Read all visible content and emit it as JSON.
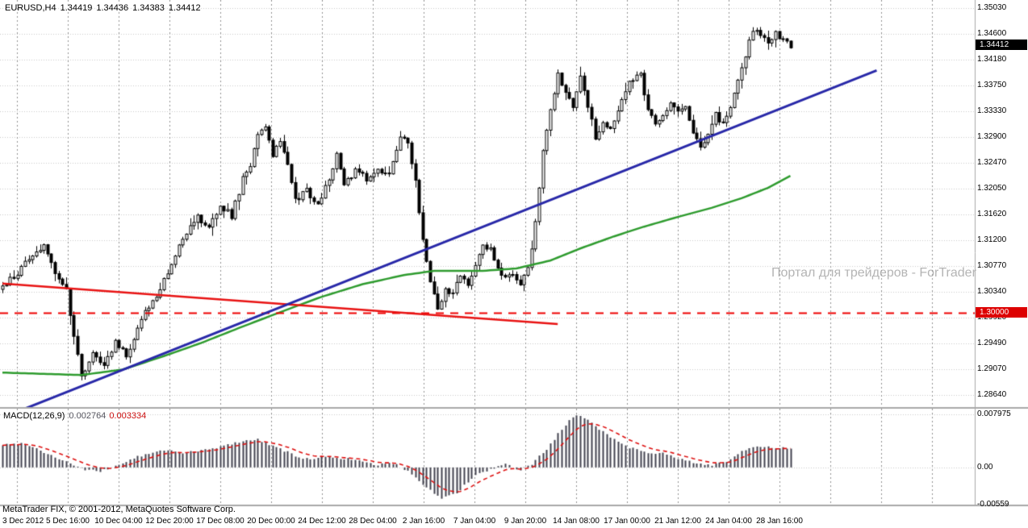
{
  "header": {
    "symbol": "EURUSD,H4",
    "open": "1.34419",
    "high": "1.34436",
    "low": "1.34383",
    "close": "1.34412"
  },
  "watermark": "Портал для трейдеров - ForTrader",
  "footer": "MetaTrader FIX, © 2001-2012, MetaQuotes Software Corp.",
  "price_tags": {
    "current": "1.34412",
    "level": "1.30000"
  },
  "macd_panel": {
    "label": "MACD(12,26,9)",
    "value_main": "0.002764",
    "value_signal": "0.003334",
    "axis_labels": [
      "0.007975",
      "0.00",
      "-0.00559"
    ]
  },
  "colors": {
    "background": "#ffffff",
    "candle_up": "#ffffff",
    "candle_down": "#000000",
    "candle_border": "#000000",
    "ma_green": "#2e9b2e",
    "trendline_blue": "#2828a8",
    "trendline_red": "#e81212",
    "level_red": "#ee0000",
    "macd_histogram": "#43434f",
    "macd_signal": "#dd1111",
    "grid": "#c9c9c9",
    "vgrid": "#8f8f8f",
    "separator": "#a8a8a8",
    "axis_text": "#000000",
    "tag_current_bg": "#000000",
    "tag_level_bg": "#dd0000",
    "watermark": "#b4b4b4"
  },
  "chart_data": {
    "type": "candlestick",
    "title": "EURUSD H4 with MACD(12,26,9)",
    "symbol": "EURUSD",
    "timeframe": "H4",
    "last_bar_ohlc": [
      1.34419,
      1.34436,
      1.34383,
      1.34412
    ],
    "price_axis": {
      "max": 1.3503,
      "min": 1.2864,
      "labels": [
        "1.35030",
        "1.34600",
        "1.34180",
        "1.33750",
        "1.33330",
        "1.32900",
        "1.32470",
        "1.32050",
        "1.31620",
        "1.31200",
        "1.30770",
        "1.30340",
        "1.29920",
        "1.29490",
        "1.29070",
        "1.28640"
      ],
      "current_price": 1.34412,
      "level_price": 1.3
    },
    "time_axis": {
      "labels": [
        "3 Dec 2012",
        "5 Dec 16:00",
        "10 Dec 04:00",
        "12 Dec 20:00",
        "17 Dec 08:00",
        "20 Dec 00:00",
        "24 Dec 12:00",
        "28 Dec 04:00",
        "2 Jan 16:00",
        "7 Jan 04:00",
        "9 Jan 20:00",
        "14 Jan 08:00",
        "17 Jan 00:00",
        "21 Jan 12:00",
        "24 Jan 04:00",
        "28 Jan 16:00"
      ]
    },
    "n_bars": 211,
    "close_waypoints": [
      [
        0,
        1.304
      ],
      [
        3,
        1.306
      ],
      [
        8,
        1.3095
      ],
      [
        11,
        1.3115
      ],
      [
        14,
        1.306
      ],
      [
        17,
        1.3035
      ],
      [
        19,
        1.296
      ],
      [
        21,
        1.2895
      ],
      [
        24,
        1.293
      ],
      [
        27,
        1.2915
      ],
      [
        30,
        1.295
      ],
      [
        33,
        1.293
      ],
      [
        36,
        1.2975
      ],
      [
        39,
        1.301
      ],
      [
        42,
        1.304
      ],
      [
        45,
        1.308
      ],
      [
        48,
        1.312
      ],
      [
        52,
        1.316
      ],
      [
        55,
        1.314
      ],
      [
        58,
        1.3175
      ],
      [
        61,
        1.316
      ],
      [
        64,
        1.322
      ],
      [
        66,
        1.3245
      ],
      [
        68,
        1.329
      ],
      [
        70,
        1.3305
      ],
      [
        72,
        1.326
      ],
      [
        74,
        1.328
      ],
      [
        76,
        1.324
      ],
      [
        78,
        1.3185
      ],
      [
        81,
        1.32
      ],
      [
        84,
        1.318
      ],
      [
        87,
        1.322
      ],
      [
        89,
        1.326
      ],
      [
        91,
        1.321
      ],
      [
        94,
        1.3235
      ],
      [
        97,
        1.322
      ],
      [
        100,
        1.324
      ],
      [
        103,
        1.3225
      ],
      [
        106,
        1.3295
      ],
      [
        108,
        1.328
      ],
      [
        110,
        1.322
      ],
      [
        112,
        1.312
      ],
      [
        114,
        1.305
      ],
      [
        116,
        1.3005
      ],
      [
        118,
        1.304
      ],
      [
        120,
        1.303
      ],
      [
        122,
        1.306
      ],
      [
        124,
        1.3045
      ],
      [
        126,
        1.308
      ],
      [
        128,
        1.311
      ],
      [
        130,
        1.3105
      ],
      [
        132,
        1.307
      ],
      [
        134,
        1.306
      ],
      [
        136,
        1.3065
      ],
      [
        138,
        1.305
      ],
      [
        140,
        1.307
      ],
      [
        142,
        1.315
      ],
      [
        144,
        1.327
      ],
      [
        146,
        1.333
      ],
      [
        148,
        1.3395
      ],
      [
        150,
        1.336
      ],
      [
        152,
        1.334
      ],
      [
        154,
        1.339
      ],
      [
        156,
        1.334
      ],
      [
        158,
        1.329
      ],
      [
        160,
        1.331
      ],
      [
        162,
        1.33
      ],
      [
        164,
        1.333
      ],
      [
        166,
        1.337
      ],
      [
        168,
        1.3385
      ],
      [
        170,
        1.339
      ],
      [
        172,
        1.334
      ],
      [
        174,
        1.331
      ],
      [
        176,
        1.333
      ],
      [
        178,
        1.3345
      ],
      [
        180,
        1.333
      ],
      [
        182,
        1.334
      ],
      [
        184,
        1.33
      ],
      [
        186,
        1.327
      ],
      [
        188,
        1.33
      ],
      [
        190,
        1.333
      ],
      [
        192,
        1.331
      ],
      [
        194,
        1.334
      ],
      [
        196,
        1.338
      ],
      [
        198,
        1.342
      ],
      [
        200,
        1.347
      ],
      [
        202,
        1.3455
      ],
      [
        204,
        1.3445
      ],
      [
        206,
        1.346
      ],
      [
        208,
        1.345
      ],
      [
        210,
        1.3441
      ]
    ],
    "ma_green_waypoints": [
      [
        0,
        1.2901
      ],
      [
        21,
        1.2897
      ],
      [
        32,
        1.2906
      ],
      [
        42,
        1.2926
      ],
      [
        53,
        1.295
      ],
      [
        64,
        1.2977
      ],
      [
        75,
        1.3003
      ],
      [
        85,
        1.3026
      ],
      [
        96,
        1.3047
      ],
      [
        107,
        1.3062
      ],
      [
        115,
        1.3069
      ],
      [
        128,
        1.3069
      ],
      [
        137,
        1.3073
      ],
      [
        146,
        1.3086
      ],
      [
        154,
        1.3106
      ],
      [
        163,
        1.3126
      ],
      [
        171,
        1.3142
      ],
      [
        180,
        1.3158
      ],
      [
        189,
        1.3173
      ],
      [
        197,
        1.3189
      ],
      [
        204,
        1.3206
      ],
      [
        210,
        1.3226
      ]
    ],
    "trendline_blue": {
      "from": [
        5,
        1.2839
      ],
      "to": [
        233,
        1.34
      ]
    },
    "trendline_red": {
      "from": [
        0,
        1.3048
      ],
      "to": [
        148,
        1.2981
      ]
    },
    "hline_red_dashed": 1.3,
    "macd": {
      "max": 0.007975,
      "min": -0.00559,
      "signal_period": 9,
      "waypoints": [
        [
          0,
          0.0034
        ],
        [
          6,
          0.0036
        ],
        [
          13,
          0.0018
        ],
        [
          18,
          0.0006
        ],
        [
          22,
          -0.0004
        ],
        [
          26,
          -0.0006
        ],
        [
          30,
          0.0002
        ],
        [
          36,
          0.0016
        ],
        [
          43,
          0.0026
        ],
        [
          49,
          0.0022
        ],
        [
          56,
          0.0028
        ],
        [
          64,
          0.004
        ],
        [
          68,
          0.0042
        ],
        [
          74,
          0.0028
        ],
        [
          80,
          0.0012
        ],
        [
          86,
          0.0016
        ],
        [
          92,
          0.0013
        ],
        [
          99,
          0.0004
        ],
        [
          104,
          0.0006
        ],
        [
          108,
          -0.0005
        ],
        [
          113,
          -0.003
        ],
        [
          117,
          -0.0047
        ],
        [
          121,
          -0.0038
        ],
        [
          126,
          -0.0012
        ],
        [
          130,
          -0.0003
        ],
        [
          134,
          0.0004
        ],
        [
          138,
          -0.0004
        ],
        [
          141,
          0.0005
        ],
        [
          145,
          0.0028
        ],
        [
          148,
          0.005
        ],
        [
          151,
          0.007
        ],
        [
          153,
          0.0077
        ],
        [
          156,
          0.0073
        ],
        [
          159,
          0.0058
        ],
        [
          163,
          0.0042
        ],
        [
          167,
          0.003
        ],
        [
          172,
          0.0023
        ],
        [
          176,
          0.0021
        ],
        [
          180,
          0.0013
        ],
        [
          185,
          0.0006
        ],
        [
          189,
          0.0004
        ],
        [
          193,
          0.0009
        ],
        [
          197,
          0.0024
        ],
        [
          201,
          0.0031
        ],
        [
          205,
          0.003
        ],
        [
          210,
          0.0028
        ]
      ]
    }
  }
}
